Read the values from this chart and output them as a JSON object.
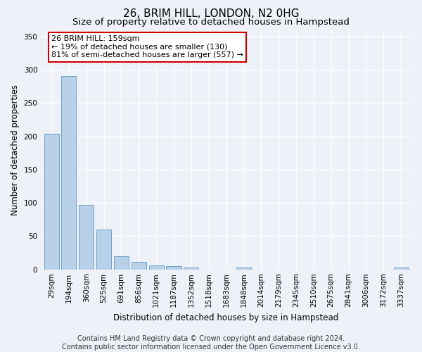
{
  "title": "26, BRIM HILL, LONDON, N2 0HG",
  "subtitle": "Size of property relative to detached houses in Hampstead",
  "xlabel": "Distribution of detached houses by size in Hampstead",
  "ylabel": "Number of detached properties",
  "categories": [
    "29sqm",
    "194sqm",
    "360sqm",
    "525sqm",
    "691sqm",
    "856sqm",
    "1021sqm",
    "1187sqm",
    "1352sqm",
    "1518sqm",
    "1683sqm",
    "1848sqm",
    "2014sqm",
    "2179sqm",
    "2345sqm",
    "2510sqm",
    "2675sqm",
    "2841sqm",
    "3006sqm",
    "3172sqm",
    "3337sqm"
  ],
  "values": [
    204,
    291,
    97,
    60,
    20,
    11,
    6,
    5,
    3,
    0,
    0,
    3,
    0,
    0,
    0,
    0,
    0,
    0,
    0,
    0,
    3
  ],
  "bar_color": "#b8d0e8",
  "bar_edge_color": "#6ba3cc",
  "annotation_text": "26 BRIM HILL: 159sqm\n← 19% of detached houses are smaller (130)\n81% of semi-detached houses are larger (557) →",
  "annotation_box_color": "#ffffff",
  "annotation_box_edge_color": "#cc0000",
  "ylim": [
    0,
    360
  ],
  "yticks": [
    0,
    50,
    100,
    150,
    200,
    250,
    300,
    350
  ],
  "footer_text": "Contains HM Land Registry data © Crown copyright and database right 2024.\nContains public sector information licensed under the Open Government Licence v3.0.",
  "background_color": "#eef2f8",
  "grid_color": "#ffffff",
  "title_fontsize": 11,
  "subtitle_fontsize": 9.5,
  "axis_label_fontsize": 8.5,
  "tick_fontsize": 7.5,
  "annotation_fontsize": 8,
  "footer_fontsize": 7
}
